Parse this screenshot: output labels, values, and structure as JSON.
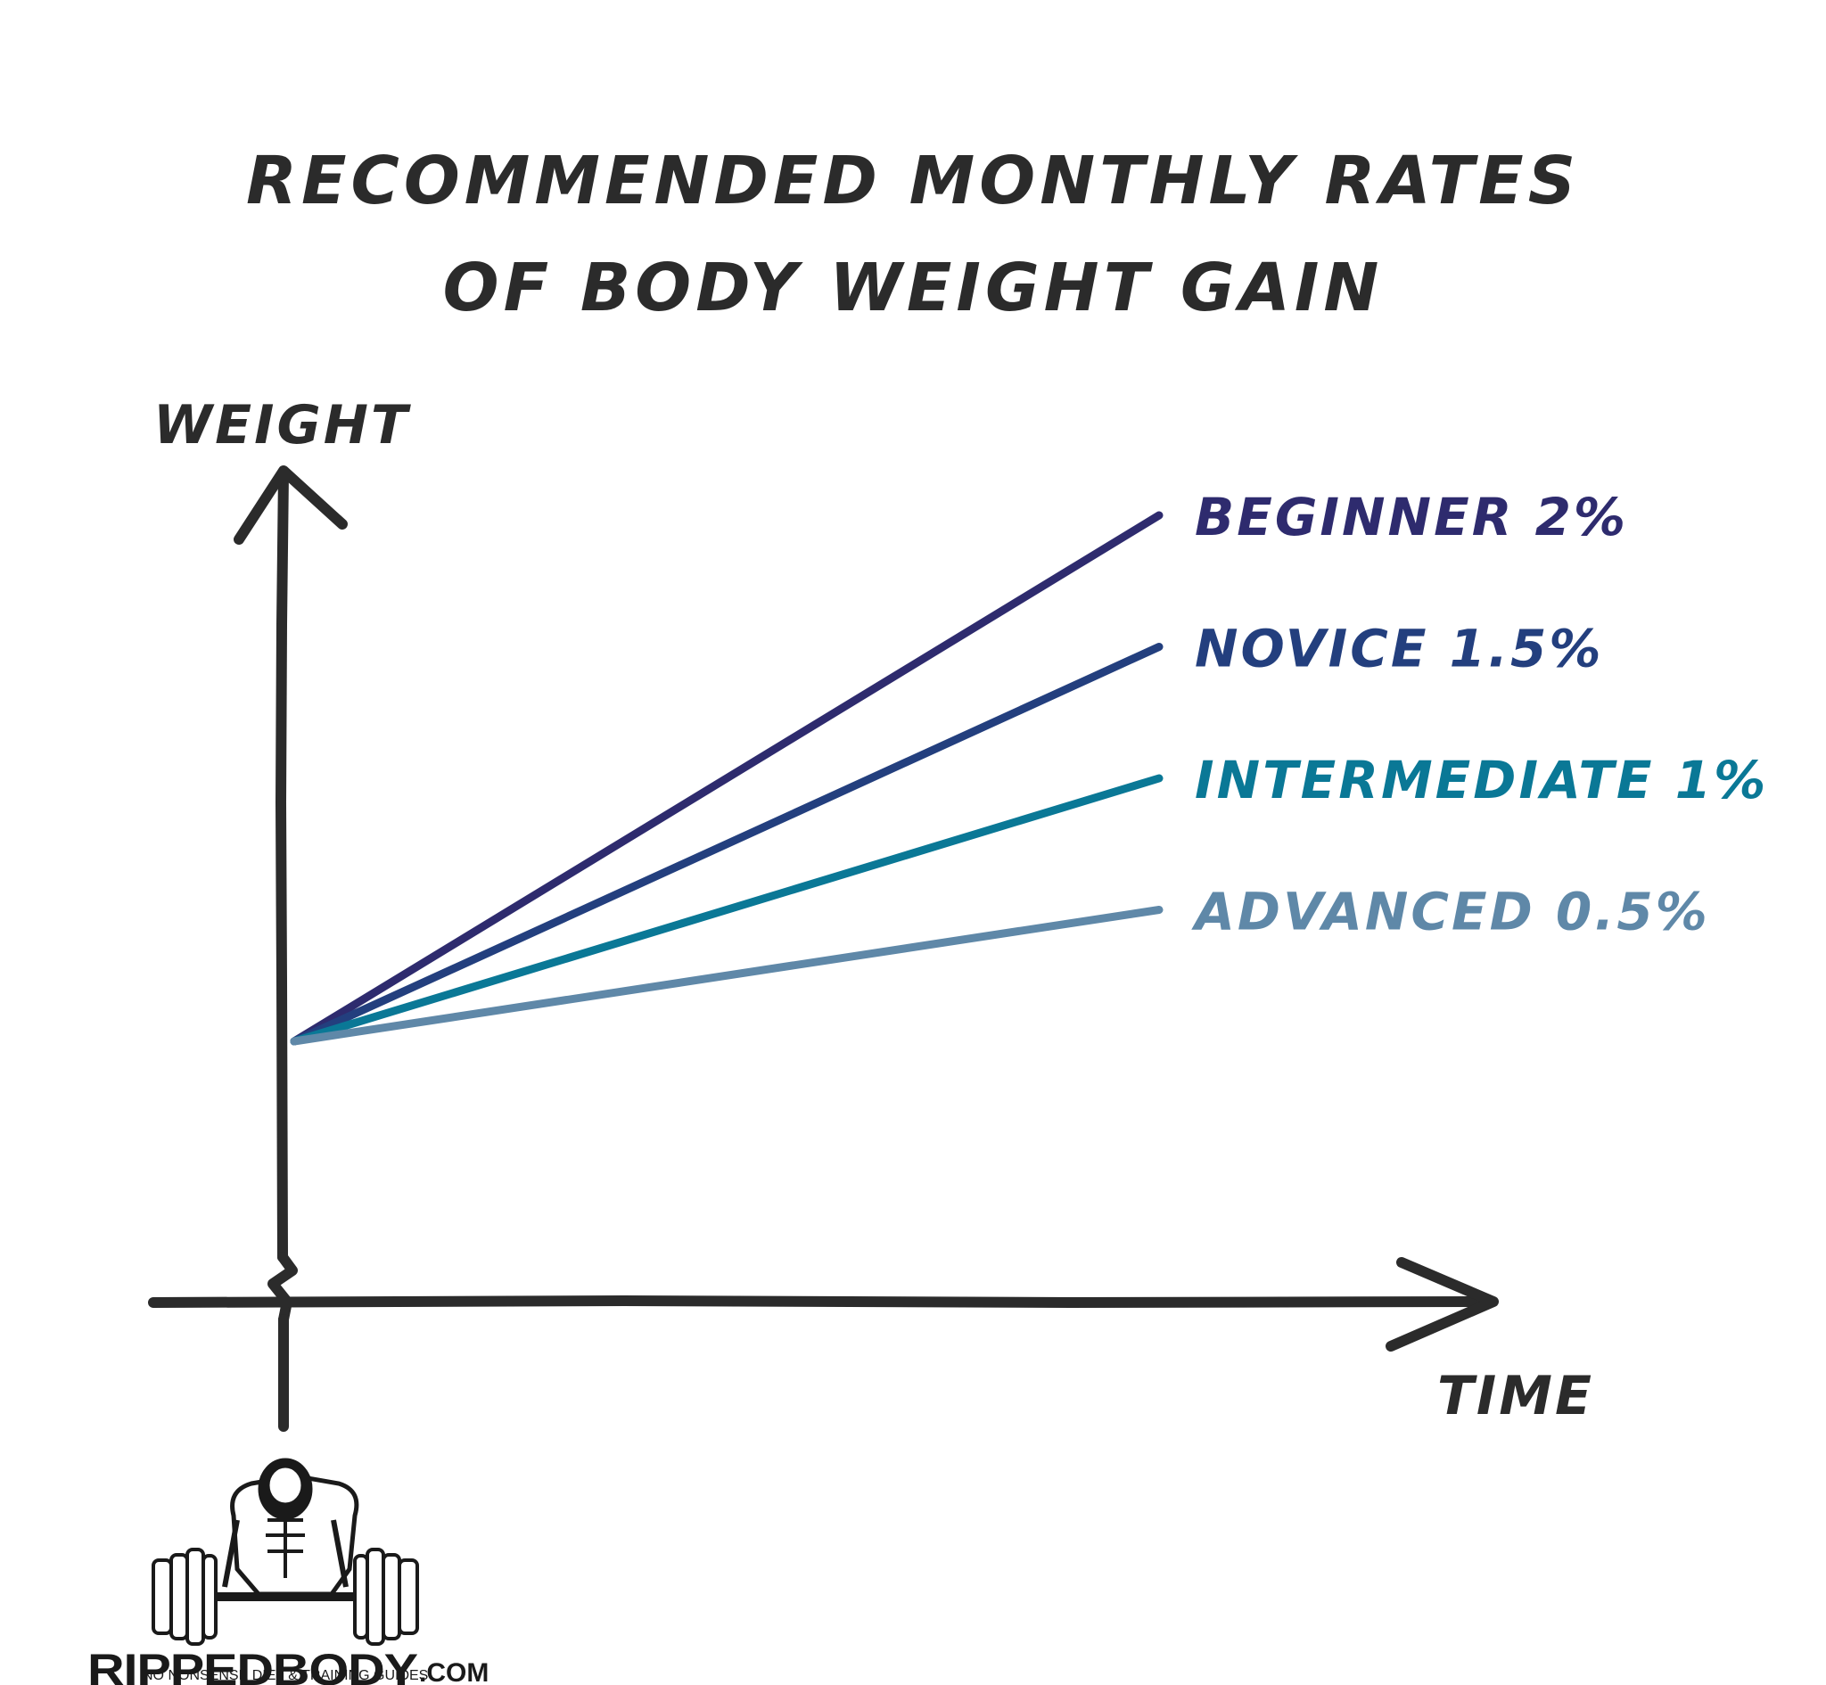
{
  "chart_data": {
    "type": "line",
    "title_lines": [
      "RECOMMENDED MONTHLY RATES",
      "OF BODY WEIGHT GAIN"
    ],
    "xlabel": "TIME",
    "ylabel": "WEIGHT",
    "y_axis_break": true,
    "grid": false,
    "legend": "direct labels at line ends",
    "series": [
      {
        "name": "BEGINNER 2%",
        "rate_percent": 2.0,
        "color": "#2e2b6e"
      },
      {
        "name": "NOVICE 1.5%",
        "rate_percent": 1.5,
        "color": "#233f7e"
      },
      {
        "name": "INTERMEDIATE 1%",
        "rate_percent": 1.0,
        "color": "#0a7896"
      },
      {
        "name": "ADVANCED 0.5%",
        "rate_percent": 0.5,
        "color": "#5f88a8"
      }
    ]
  },
  "logo": {
    "brand": "RIPPEDBODY",
    "domain": ".COM",
    "tagline": "NO NONSENSE DIET & TRAINING GUIDES"
  }
}
